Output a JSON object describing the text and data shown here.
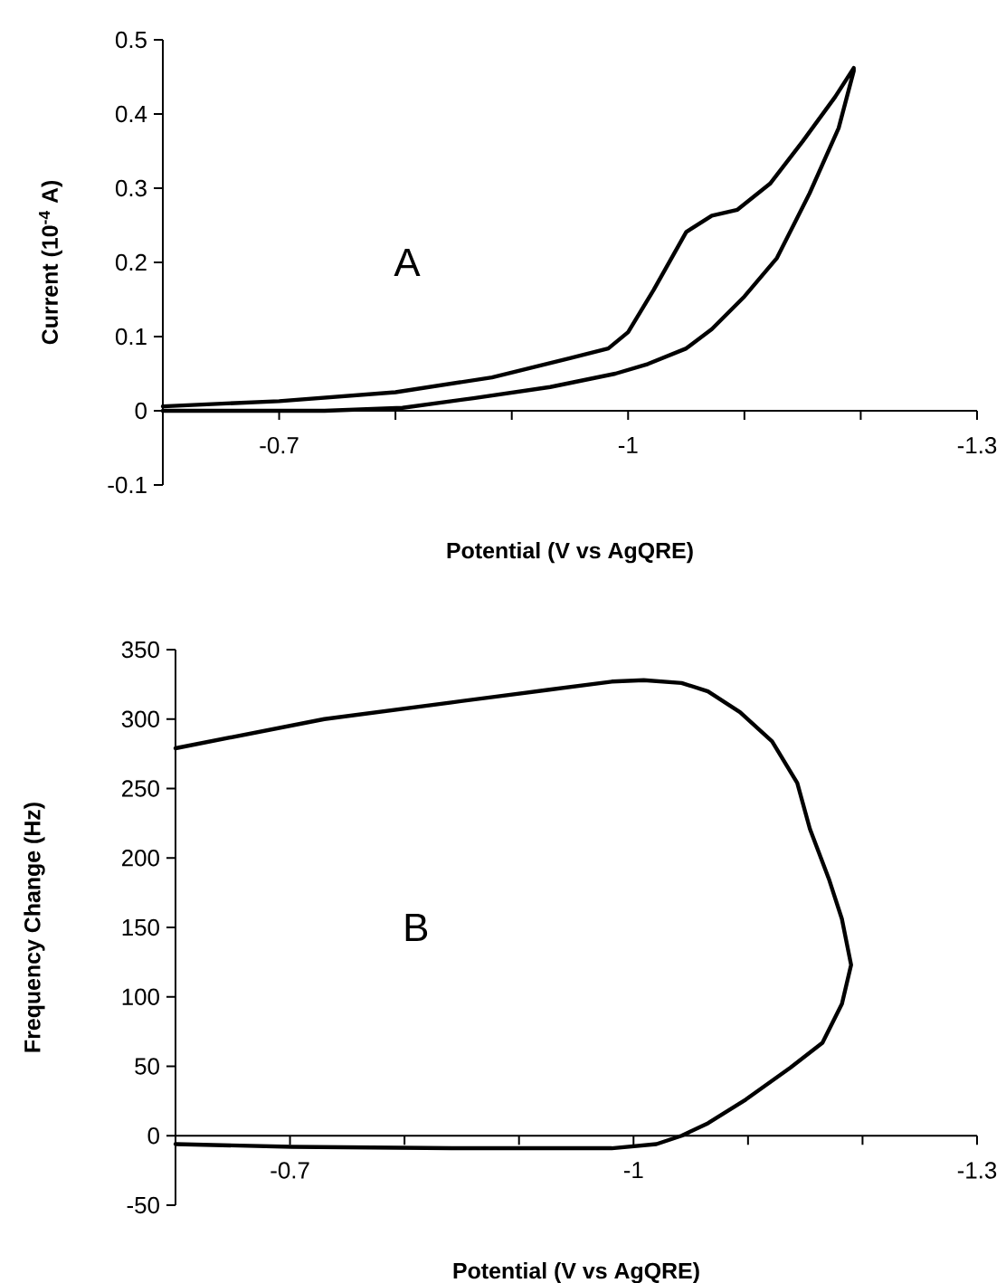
{
  "chart_data": [
    {
      "type": "line",
      "xlabel": "Potential (V vs AgQRE)",
      "ylabel": "Current (10$^{-4}$ A)",
      "annotations": [
        "A"
      ],
      "xlim": [
        -0.6,
        -1.3
      ],
      "ylim": [
        -0.1,
        0.5
      ],
      "xticks": [
        -0.7,
        {
          "value": -0.8,
          "label": null
        },
        {
          "value": -0.9,
          "label": null
        },
        -1,
        {
          "value": -1.1,
          "label": null
        },
        {
          "value": -1.2,
          "label": null
        },
        -1.3
      ],
      "yticks": [
        -0.1,
        0,
        0.1,
        0.2,
        0.3,
        0.4,
        0.5
      ],
      "marker": "none",
      "line_style": "solid",
      "series": [
        {
          "color": "#000000",
          "x": [
            -0.6,
            -0.7,
            -0.8,
            -0.883,
            -0.95,
            -0.983,
            -1.0,
            -1.022,
            -1.05,
            -1.072,
            -1.094,
            -1.122,
            -1.15,
            -1.178,
            -1.194,
            -1.194,
            -1.181,
            -1.156,
            -1.128,
            -1.1,
            -1.072,
            -1.05,
            -1.017,
            -0.989,
            -0.933,
            -0.867,
            -0.806,
            -0.739,
            -0.683,
            -0.6
          ],
          "values": [
            0.006,
            0.013,
            0.025,
            0.045,
            0.071,
            0.084,
            0.106,
            0.163,
            0.241,
            0.263,
            0.271,
            0.306,
            0.363,
            0.423,
            0.462,
            0.458,
            0.381,
            0.293,
            0.206,
            0.154,
            0.11,
            0.084,
            0.063,
            0.05,
            0.032,
            0.017,
            0.004,
            0.0,
            0.0,
            0.0
          ]
        }
      ]
    },
    {
      "type": "line",
      "xlabel": "Potential (V vs AgQRE)",
      "ylabel": "Frequency Change (Hz)",
      "annotations": [
        "B"
      ],
      "xlim": [
        -0.6,
        -1.3
      ],
      "ylim": [
        -50,
        350
      ],
      "xticks": [
        -0.7,
        {
          "value": -0.8,
          "label": null
        },
        {
          "value": -0.9,
          "label": null
        },
        -1,
        {
          "value": -1.1,
          "label": null
        },
        {
          "value": -1.2,
          "label": null
        },
        -1.3
      ],
      "yticks": [
        -50,
        0,
        50,
        100,
        150,
        200,
        250,
        300,
        350
      ],
      "marker": "none",
      "line_style": "solid",
      "series": [
        {
          "color": "#000000",
          "x": [
            -0.6,
            -0.73,
            -0.841,
            -0.925,
            -0.981,
            -1.009,
            -1.042,
            -1.065,
            -1.093,
            -1.121,
            -1.143,
            -1.154,
            -1.171,
            -1.182,
            -1.19,
            -1.182,
            -1.165,
            -1.137,
            -1.098,
            -1.065,
            -1.042,
            -1.02,
            -0.981,
            -0.841,
            -0.702,
            -0.6
          ],
          "values": [
            279,
            300,
            312,
            321,
            327,
            328,
            326,
            320,
            305,
            284,
            254,
            221,
            184,
            156,
            123,
            95,
            67,
            49,
            26,
            9,
            0,
            -6,
            -9,
            -9,
            -8,
            -6
          ]
        }
      ]
    }
  ]
}
